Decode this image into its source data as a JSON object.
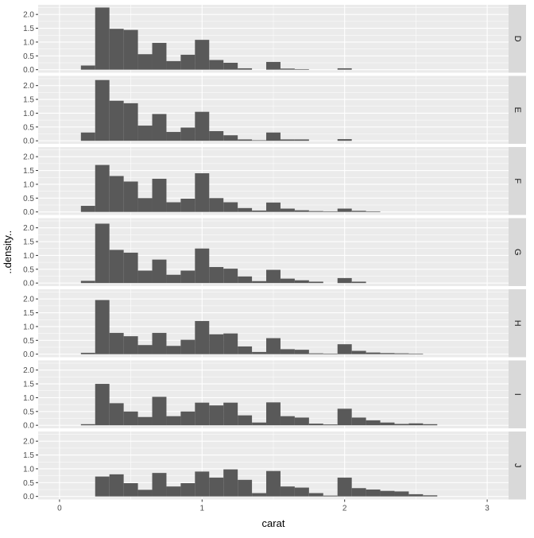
{
  "chart_data": {
    "type": "bar",
    "xlabel": "carat",
    "ylabel": "..density..",
    "facets": [
      "D",
      "E",
      "F",
      "G",
      "H",
      "I",
      "J"
    ],
    "xlim": [
      -0.15,
      3.15
    ],
    "ylim": [
      -0.11,
      2.35
    ],
    "x_ticks": [
      0,
      1,
      2,
      3
    ],
    "x_tick_labels": [
      "0",
      "1",
      "2",
      "3"
    ],
    "y_ticks": [
      0,
      0.5,
      1,
      1.5,
      2
    ],
    "y_tick_labels": [
      "0.0",
      "0.5",
      "1.0",
      "1.5",
      "2.0"
    ],
    "bin_width": 0.1,
    "bin_starts": [
      0.15,
      0.25,
      0.35,
      0.45,
      0.55,
      0.65,
      0.75,
      0.85,
      0.95,
      1.05,
      1.15,
      1.25,
      1.35,
      1.45,
      1.55,
      1.65,
      1.75,
      1.85,
      1.95,
      2.05,
      2.15,
      2.25,
      2.35,
      2.45,
      2.55
    ],
    "grid": true,
    "series": [
      {
        "name": "D",
        "values": [
          0.15,
          2.25,
          1.48,
          1.44,
          0.56,
          0.97,
          0.31,
          0.54,
          1.08,
          0.35,
          0.25,
          0.05,
          0.0,
          0.28,
          0.04,
          0.02,
          0.0,
          0.0,
          0.05,
          0.0,
          0.0,
          0.0,
          0.0,
          0.0,
          0.0
        ]
      },
      {
        "name": "E",
        "values": [
          0.3,
          2.2,
          1.45,
          1.36,
          0.55,
          0.97,
          0.32,
          0.48,
          1.05,
          0.35,
          0.2,
          0.05,
          0.02,
          0.3,
          0.05,
          0.05,
          0.0,
          0.0,
          0.06,
          0.0,
          0.0,
          0.0,
          0.0,
          0.0,
          0.0
        ]
      },
      {
        "name": "F",
        "values": [
          0.22,
          1.7,
          1.3,
          1.1,
          0.5,
          1.2,
          0.35,
          0.48,
          1.4,
          0.5,
          0.35,
          0.14,
          0.05,
          0.34,
          0.12,
          0.06,
          0.03,
          0.02,
          0.12,
          0.04,
          0.02,
          0.0,
          0.0,
          0.0,
          0.0
        ]
      },
      {
        "name": "G",
        "values": [
          0.08,
          2.15,
          1.2,
          1.1,
          0.45,
          0.85,
          0.3,
          0.45,
          1.25,
          0.58,
          0.52,
          0.24,
          0.07,
          0.48,
          0.16,
          0.1,
          0.05,
          0.0,
          0.18,
          0.05,
          0.0,
          0.0,
          0.0,
          0.0,
          0.0
        ]
      },
      {
        "name": "H",
        "values": [
          0.05,
          1.96,
          0.77,
          0.65,
          0.33,
          0.77,
          0.3,
          0.52,
          1.2,
          0.72,
          0.75,
          0.28,
          0.08,
          0.58,
          0.18,
          0.16,
          0.03,
          0.02,
          0.36,
          0.12,
          0.06,
          0.04,
          0.03,
          0.02,
          0.0
        ]
      },
      {
        "name": "I",
        "values": [
          0.04,
          1.5,
          0.8,
          0.5,
          0.3,
          1.03,
          0.33,
          0.5,
          0.82,
          0.72,
          0.82,
          0.36,
          0.1,
          0.83,
          0.33,
          0.28,
          0.06,
          0.03,
          0.6,
          0.28,
          0.18,
          0.1,
          0.05,
          0.07,
          0.04
        ]
      },
      {
        "name": "J",
        "values": [
          0.0,
          0.72,
          0.8,
          0.48,
          0.24,
          0.85,
          0.36,
          0.48,
          0.9,
          0.68,
          0.98,
          0.6,
          0.12,
          0.92,
          0.36,
          0.32,
          0.12,
          0.03,
          0.68,
          0.3,
          0.25,
          0.2,
          0.18,
          0.08,
          0.04
        ]
      }
    ]
  }
}
